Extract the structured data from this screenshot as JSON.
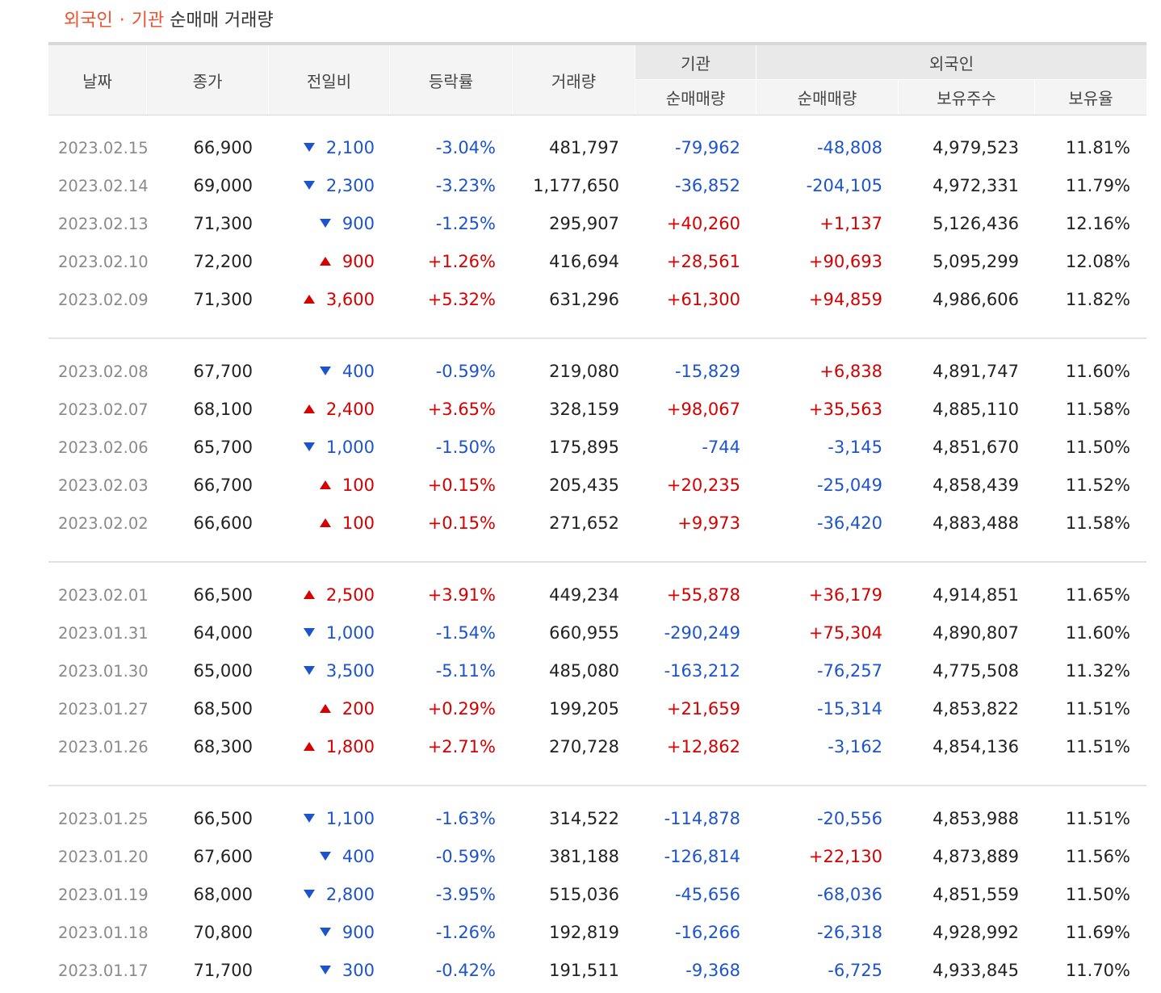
{
  "title": {
    "part1": "외국인",
    "separator": "·",
    "part2": "기관",
    "part3": "순매매 거래량"
  },
  "colors": {
    "accent": "#f0502b",
    "up": "#d60000",
    "down": "#1d54cc"
  },
  "headers": {
    "date": "날짜",
    "close": "종가",
    "diff": "전일비",
    "rate": "등락률",
    "volume": "거래량",
    "institution_group": "기관",
    "institution_net": "순매매량",
    "foreign_group": "외국인",
    "foreign_net": "순매매량",
    "foreign_holdings": "보유주수",
    "foreign_ratio": "보유율"
  },
  "groups": [
    [
      {
        "date": "2023.02.15",
        "close": "66,900",
        "dir": "down",
        "diff": "2,100",
        "rate": "-3.04%",
        "volume": "481,797",
        "inst": "-79,962",
        "frn": "-48,808",
        "hold": "4,979,523",
        "ratio": "11.81%"
      },
      {
        "date": "2023.02.14",
        "close": "69,000",
        "dir": "down",
        "diff": "2,300",
        "rate": "-3.23%",
        "volume": "1,177,650",
        "inst": "-36,852",
        "frn": "-204,105",
        "hold": "4,972,331",
        "ratio": "11.79%"
      },
      {
        "date": "2023.02.13",
        "close": "71,300",
        "dir": "down",
        "diff": "900",
        "rate": "-1.25%",
        "volume": "295,907",
        "inst": "+40,260",
        "frn": "+1,137",
        "hold": "5,126,436",
        "ratio": "12.16%"
      },
      {
        "date": "2023.02.10",
        "close": "72,200",
        "dir": "up",
        "diff": "900",
        "rate": "+1.26%",
        "volume": "416,694",
        "inst": "+28,561",
        "frn": "+90,693",
        "hold": "5,095,299",
        "ratio": "12.08%"
      },
      {
        "date": "2023.02.09",
        "close": "71,300",
        "dir": "up",
        "diff": "3,600",
        "rate": "+5.32%",
        "volume": "631,296",
        "inst": "+61,300",
        "frn": "+94,859",
        "hold": "4,986,606",
        "ratio": "11.82%"
      }
    ],
    [
      {
        "date": "2023.02.08",
        "close": "67,700",
        "dir": "down",
        "diff": "400",
        "rate": "-0.59%",
        "volume": "219,080",
        "inst": "-15,829",
        "frn": "+6,838",
        "hold": "4,891,747",
        "ratio": "11.60%"
      },
      {
        "date": "2023.02.07",
        "close": "68,100",
        "dir": "up",
        "diff": "2,400",
        "rate": "+3.65%",
        "volume": "328,159",
        "inst": "+98,067",
        "frn": "+35,563",
        "hold": "4,885,110",
        "ratio": "11.58%"
      },
      {
        "date": "2023.02.06",
        "close": "65,700",
        "dir": "down",
        "diff": "1,000",
        "rate": "-1.50%",
        "volume": "175,895",
        "inst": "-744",
        "frn": "-3,145",
        "hold": "4,851,670",
        "ratio": "11.50%"
      },
      {
        "date": "2023.02.03",
        "close": "66,700",
        "dir": "up",
        "diff": "100",
        "rate": "+0.15%",
        "volume": "205,435",
        "inst": "+20,235",
        "frn": "-25,049",
        "hold": "4,858,439",
        "ratio": "11.52%"
      },
      {
        "date": "2023.02.02",
        "close": "66,600",
        "dir": "up",
        "diff": "100",
        "rate": "+0.15%",
        "volume": "271,652",
        "inst": "+9,973",
        "frn": "-36,420",
        "hold": "4,883,488",
        "ratio": "11.58%"
      }
    ],
    [
      {
        "date": "2023.02.01",
        "close": "66,500",
        "dir": "up",
        "diff": "2,500",
        "rate": "+3.91%",
        "volume": "449,234",
        "inst": "+55,878",
        "frn": "+36,179",
        "hold": "4,914,851",
        "ratio": "11.65%"
      },
      {
        "date": "2023.01.31",
        "close": "64,000",
        "dir": "down",
        "diff": "1,000",
        "rate": "-1.54%",
        "volume": "660,955",
        "inst": "-290,249",
        "frn": "+75,304",
        "hold": "4,890,807",
        "ratio": "11.60%"
      },
      {
        "date": "2023.01.30",
        "close": "65,000",
        "dir": "down",
        "diff": "3,500",
        "rate": "-5.11%",
        "volume": "485,080",
        "inst": "-163,212",
        "frn": "-76,257",
        "hold": "4,775,508",
        "ratio": "11.32%"
      },
      {
        "date": "2023.01.27",
        "close": "68,500",
        "dir": "up",
        "diff": "200",
        "rate": "+0.29%",
        "volume": "199,205",
        "inst": "+21,659",
        "frn": "-15,314",
        "hold": "4,853,822",
        "ratio": "11.51%"
      },
      {
        "date": "2023.01.26",
        "close": "68,300",
        "dir": "up",
        "diff": "1,800",
        "rate": "+2.71%",
        "volume": "270,728",
        "inst": "+12,862",
        "frn": "-3,162",
        "hold": "4,854,136",
        "ratio": "11.51%"
      }
    ],
    [
      {
        "date": "2023.01.25",
        "close": "66,500",
        "dir": "down",
        "diff": "1,100",
        "rate": "-1.63%",
        "volume": "314,522",
        "inst": "-114,878",
        "frn": "-20,556",
        "hold": "4,853,988",
        "ratio": "11.51%"
      },
      {
        "date": "2023.01.20",
        "close": "67,600",
        "dir": "down",
        "diff": "400",
        "rate": "-0.59%",
        "volume": "381,188",
        "inst": "-126,814",
        "frn": "+22,130",
        "hold": "4,873,889",
        "ratio": "11.56%"
      },
      {
        "date": "2023.01.19",
        "close": "68,000",
        "dir": "down",
        "diff": "2,800",
        "rate": "-3.95%",
        "volume": "515,036",
        "inst": "-45,656",
        "frn": "-68,036",
        "hold": "4,851,559",
        "ratio": "11.50%"
      },
      {
        "date": "2023.01.18",
        "close": "70,800",
        "dir": "down",
        "diff": "900",
        "rate": "-1.26%",
        "volume": "192,819",
        "inst": "-16,266",
        "frn": "-26,318",
        "hold": "4,928,992",
        "ratio": "11.69%"
      },
      {
        "date": "2023.01.17",
        "close": "71,700",
        "dir": "down",
        "diff": "300",
        "rate": "-0.42%",
        "volume": "191,511",
        "inst": "-9,368",
        "frn": "-6,725",
        "hold": "4,933,845",
        "ratio": "11.70%"
      }
    ]
  ]
}
